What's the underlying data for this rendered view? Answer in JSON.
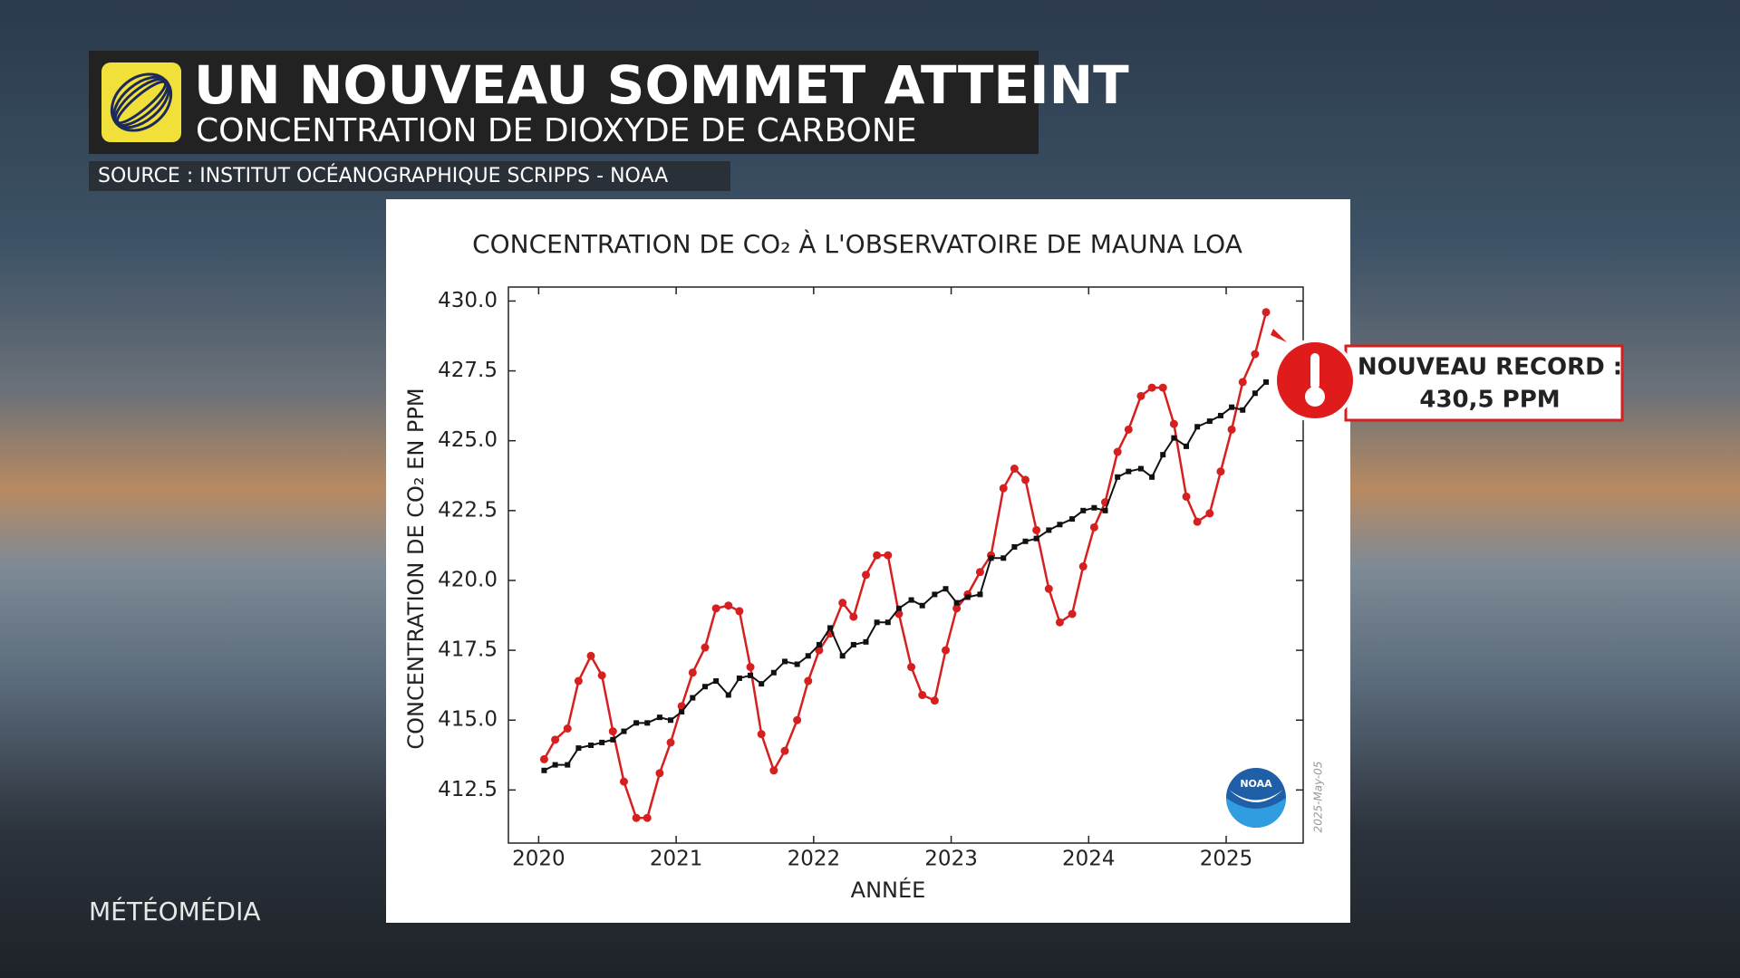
{
  "header": {
    "title": "UN NOUVEAU SOMMET ATTEINT",
    "subtitle": "CONCENTRATION DE DIOXYDE DE CARBONE",
    "source": "SOURCE : INSTITUT OCÉANOGRAPHIQUE SCRIPPS - NOAA"
  },
  "brand": "MÉTÉOMÉDIA",
  "chart_data": {
    "type": "line",
    "title": "CONCENTRATION DE CO₂  À L'OBSERVATOIRE DE MAUNA LOA",
    "x_label": "ANNÉE",
    "y_label": "CONCENTRATION DE CO₂ EN PPM",
    "date_stamp": "2025-May-05",
    "logo": "NOAA",
    "annotation": {
      "line1": "NOUVEAU RECORD :",
      "line2": "430,5 PPM"
    },
    "x": [
      2020.04,
      2020.12,
      2020.21,
      2020.29,
      2020.38,
      2020.46,
      2020.54,
      2020.62,
      2020.71,
      2020.79,
      2020.88,
      2020.96,
      2021.04,
      2021.12,
      2021.21,
      2021.29,
      2021.38,
      2021.46,
      2021.54,
      2021.62,
      2021.71,
      2021.79,
      2021.88,
      2021.96,
      2022.04,
      2022.12,
      2022.21,
      2022.29,
      2022.38,
      2022.46,
      2022.54,
      2022.62,
      2022.71,
      2022.79,
      2022.88,
      2022.96,
      2023.04,
      2023.12,
      2023.21,
      2023.29,
      2023.38,
      2023.46,
      2023.54,
      2023.62,
      2023.71,
      2023.79,
      2023.88,
      2023.96,
      2024.04,
      2024.12,
      2024.21,
      2024.29,
      2024.38,
      2024.46,
      2024.54,
      2024.62,
      2024.71,
      2024.79,
      2024.88,
      2024.96,
      2025.04,
      2025.12,
      2025.21,
      2025.29
    ],
    "series": [
      {
        "color": "#d62020",
        "values": [
          413.6,
          414.3,
          414.7,
          416.4,
          417.3,
          416.6,
          414.6,
          412.8,
          411.5,
          411.5,
          413.1,
          414.2,
          415.5,
          416.7,
          417.6,
          419.0,
          419.1,
          418.9,
          416.9,
          414.5,
          413.2,
          413.9,
          415.0,
          416.4,
          417.5,
          418.1,
          419.2,
          418.7,
          420.2,
          420.9,
          420.9,
          418.8,
          416.9,
          415.9,
          415.7,
          417.5,
          419.0,
          419.5,
          420.3,
          420.9,
          423.3,
          424.0,
          423.6,
          421.8,
          419.7,
          418.5,
          418.8,
          420.5,
          421.9,
          422.8,
          424.6,
          425.4,
          426.6,
          426.9,
          426.9,
          425.6,
          423.0,
          422.1,
          422.4,
          423.9,
          425.4,
          427.1,
          428.1,
          429.6
        ]
      },
      {
        "color": "#111111",
        "values": [
          413.2,
          413.4,
          413.4,
          414.0,
          414.1,
          414.2,
          414.3,
          414.6,
          414.9,
          414.9,
          415.1,
          415.0,
          415.3,
          415.8,
          416.2,
          416.4,
          415.9,
          416.5,
          416.6,
          416.3,
          416.7,
          417.1,
          417.0,
          417.3,
          417.7,
          418.3,
          417.3,
          417.7,
          417.8,
          418.5,
          418.5,
          419.0,
          419.3,
          419.1,
          419.5,
          419.7,
          419.2,
          419.4,
          419.5,
          420.8,
          420.8,
          421.2,
          421.4,
          421.5,
          421.8,
          422.0,
          422.2,
          422.5,
          422.6,
          422.5,
          423.7,
          423.9,
          424.0,
          423.7,
          424.5,
          425.1,
          424.8,
          425.5,
          425.7,
          425.9,
          426.2,
          426.1,
          426.7,
          427.1
        ]
      }
    ],
    "xlim": [
      2019.78,
      2025.56
    ],
    "ylim": [
      410.6,
      430.5
    ],
    "xticks": [
      2020,
      2021,
      2022,
      2023,
      2024,
      2025
    ],
    "yticks": [
      412.5,
      {
        "value": 415,
        "label": "415.0"
      },
      417.5,
      {
        "value": 420,
        "label": "420.0"
      },
      422.5,
      {
        "value": 425,
        "label": "425.0"
      },
      427.5,
      {
        "value": 430,
        "label": "430.0"
      }
    ]
  }
}
